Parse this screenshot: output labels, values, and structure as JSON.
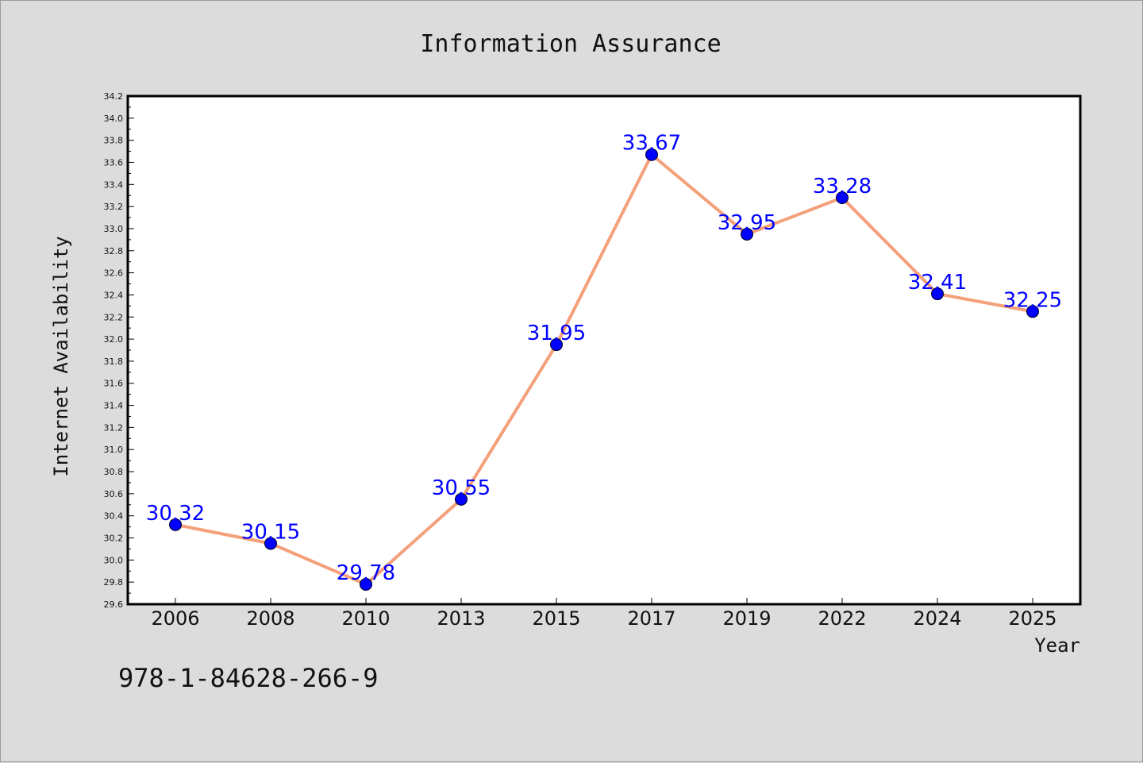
{
  "chart_data": {
    "type": "line",
    "title": "Information Assurance",
    "xlabel": "Year",
    "ylabel": "Internet Availability",
    "categories": [
      "2006",
      "2008",
      "2010",
      "2013",
      "2015",
      "2017",
      "2019",
      "2022",
      "2024",
      "2025"
    ],
    "series": [
      {
        "values": [
          30.32,
          30.15,
          29.78,
          30.55,
          31.95,
          33.67,
          32.95,
          33.28,
          32.41,
          32.25
        ],
        "labels": [
          "30.32",
          "30.15",
          "29.78",
          "30.55",
          "31.95",
          "33.67",
          "32.95",
          "33.28",
          "32.41",
          "32.25"
        ],
        "line_color": "#f4a07a",
        "marker_color": "#0000ff"
      }
    ],
    "ylim": [
      29.6,
      34.2
    ],
    "yticks": [
      "29.6",
      "29.8",
      "30.0",
      "30.2",
      "30.4",
      "30.6",
      "30.8",
      "31.0",
      "31.2",
      "31.4",
      "31.6",
      "31.8",
      "32.0",
      "32.2",
      "32.4",
      "32.6",
      "32.8",
      "33.0",
      "33.2",
      "33.4",
      "33.6",
      "33.8",
      "34.0",
      "34.2"
    ],
    "grid": false,
    "legend": "none"
  },
  "footer": {
    "isbn": "978-1-84628-266-9"
  }
}
